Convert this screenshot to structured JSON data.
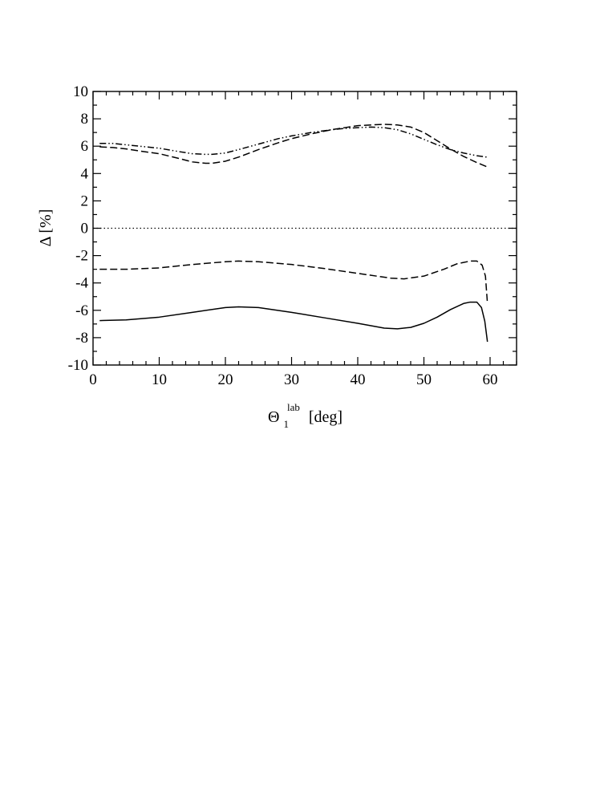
{
  "chart_data": {
    "type": "line",
    "title": "",
    "xlabel": {
      "main": "Θ",
      "sub": "1",
      "sup": "lab",
      "unit": "[deg]"
    },
    "ylabel": "Δ [%]",
    "xlim": [
      0,
      64
    ],
    "ylim": [
      -10,
      10
    ],
    "xticks": [
      0,
      10,
      20,
      30,
      40,
      50,
      60
    ],
    "yticks": [
      -10,
      -8,
      -6,
      -4,
      -2,
      0,
      2,
      4,
      6,
      8,
      10
    ],
    "xminor_step": 2,
    "yminor_step": 1,
    "grid": false,
    "legend": "none",
    "series": [
      {
        "style": "dash-dot-dot",
        "x": [
          1,
          3,
          5,
          7,
          10,
          13,
          15,
          17,
          18,
          20,
          22,
          25,
          28,
          30,
          33,
          36,
          38,
          40,
          42,
          44,
          46,
          48,
          50,
          52,
          54,
          56,
          58,
          59.5
        ],
        "y": [
          6.2,
          6.2,
          6.1,
          6.0,
          5.85,
          5.6,
          5.45,
          5.4,
          5.4,
          5.5,
          5.75,
          6.15,
          6.55,
          6.75,
          7.0,
          7.2,
          7.3,
          7.35,
          7.4,
          7.35,
          7.2,
          6.9,
          6.5,
          6.1,
          5.75,
          5.5,
          5.3,
          5.2
        ]
      },
      {
        "style": "dashed",
        "x": [
          1,
          3,
          5,
          7,
          10,
          13,
          15,
          17,
          18,
          20,
          22,
          25,
          28,
          30,
          33,
          36,
          38,
          40,
          42,
          44,
          46,
          48,
          50,
          52,
          54,
          56,
          58,
          59.5
        ],
        "y": [
          5.95,
          5.9,
          5.8,
          5.65,
          5.45,
          5.1,
          4.85,
          4.75,
          4.75,
          4.9,
          5.2,
          5.75,
          6.25,
          6.55,
          6.9,
          7.2,
          7.35,
          7.5,
          7.55,
          7.6,
          7.55,
          7.4,
          7.0,
          6.4,
          5.8,
          5.25,
          4.8,
          4.5
        ]
      },
      {
        "style": "dotted",
        "x": [
          0,
          64
        ],
        "y": [
          0,
          0
        ]
      },
      {
        "style": "dashed",
        "x": [
          1,
          5,
          10,
          15,
          20,
          22,
          25,
          30,
          35,
          40,
          45,
          47,
          50,
          53,
          55,
          57,
          58,
          58.8,
          59.3,
          59.6
        ],
        "y": [
          -3.0,
          -3.0,
          -2.9,
          -2.65,
          -2.45,
          -2.4,
          -2.45,
          -2.65,
          -2.95,
          -3.3,
          -3.65,
          -3.7,
          -3.5,
          -3.0,
          -2.6,
          -2.4,
          -2.4,
          -2.7,
          -3.5,
          -5.5
        ]
      },
      {
        "style": "solid",
        "x": [
          1,
          5,
          10,
          15,
          20,
          22,
          25,
          30,
          35,
          40,
          44,
          46,
          48,
          50,
          52,
          54,
          56,
          57,
          58,
          58.7,
          59.2,
          59.6
        ],
        "y": [
          -6.75,
          -6.7,
          -6.5,
          -6.15,
          -5.8,
          -5.75,
          -5.8,
          -6.15,
          -6.55,
          -6.95,
          -7.3,
          -7.35,
          -7.25,
          -6.95,
          -6.5,
          -5.95,
          -5.5,
          -5.4,
          -5.4,
          -5.8,
          -6.8,
          -8.3
        ]
      }
    ]
  }
}
